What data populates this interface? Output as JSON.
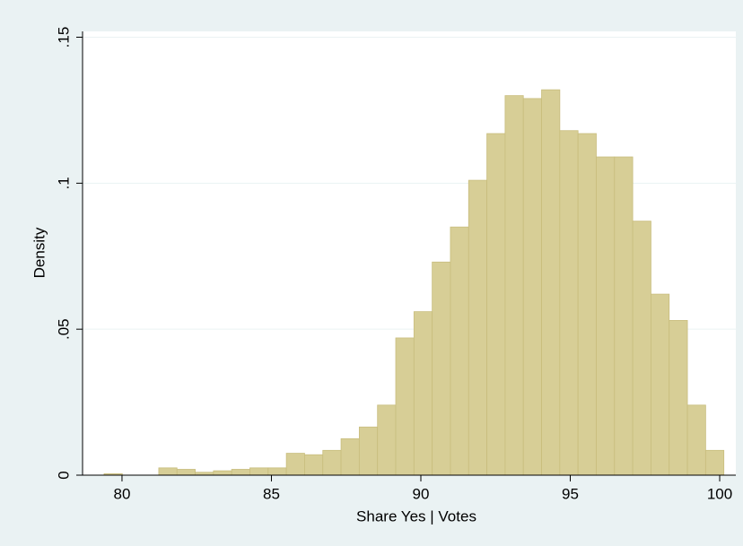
{
  "chart_data": {
    "type": "histogram",
    "x_label": "Share Yes | Votes",
    "y_label": "Density",
    "bins": [
      79.4,
      80.01,
      80.62,
      81.23,
      81.84,
      82.45,
      83.06,
      83.67,
      84.28,
      84.89,
      85.5,
      86.11,
      86.72,
      87.33,
      87.94,
      88.55,
      89.16,
      89.77,
      90.38,
      90.99,
      91.6,
      92.21,
      92.82,
      93.43,
      94.04,
      94.65,
      95.26,
      95.87,
      96.48,
      97.09,
      97.7,
      98.31,
      98.92,
      99.53,
      100.14
    ],
    "values": [
      0.0005,
      0,
      0,
      0.0025,
      0.002,
      0.001,
      0.0015,
      0.002,
      0.0025,
      0.0025,
      0.0075,
      0.007,
      0.0085,
      0.0125,
      0.0165,
      0.024,
      0.047,
      0.056,
      0.073,
      0.085,
      0.101,
      0.117,
      0.13,
      0.129,
      0.132,
      0.118,
      0.117,
      0.109,
      0.109,
      0.087,
      0.062,
      0.053,
      0.024,
      0.0085
    ],
    "color": "#d7ce96",
    "xlim": [
      78.68,
      100.54
    ],
    "xticks": [
      80,
      85,
      90,
      95,
      100
    ],
    "ylim": [
      0,
      0.152
    ],
    "yticks": [
      0,
      {
        "value": 0.05,
        "label": ".05"
      },
      {
        "value": 0.1,
        "label": ".1"
      },
      {
        "value": 0.15,
        "label": ".15"
      }
    ],
    "grid": true
  }
}
